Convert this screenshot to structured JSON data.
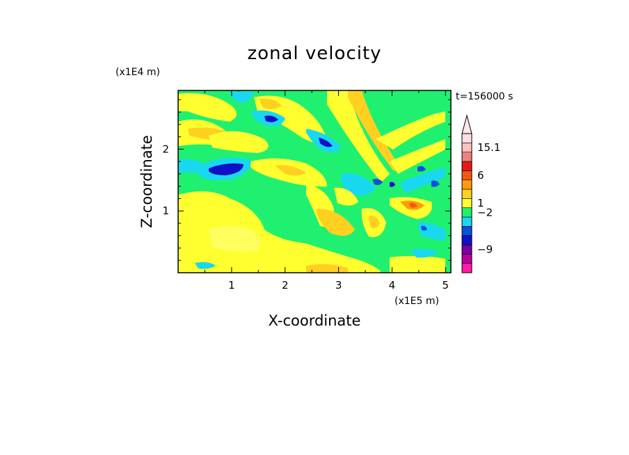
{
  "chart_data": {
    "type": "heatmap",
    "title": "zonal velocity",
    "xlabel": "X-coordinate",
    "ylabel": "Z-coordinate",
    "x_unit": "(x1E5 m)",
    "y_unit": "(x1E4 m)",
    "time_label": "t=156000 s",
    "xlim": [
      0,
      5.1
    ],
    "ylim": [
      0,
      2.95
    ],
    "x_ticks": [
      "1",
      "2",
      "3",
      "4",
      "5"
    ],
    "y_ticks": [
      "1",
      "2"
    ],
    "colorbar": {
      "tick_labels": [
        "15.1",
        "6",
        "1",
        "−2",
        "−9"
      ],
      "levels": [
        {
          "color": "#ff1aa8"
        },
        {
          "color": "#b8009c"
        },
        {
          "color": "#7800a8"
        },
        {
          "color": "#1010c8"
        },
        {
          "color": "#0a50e0"
        },
        {
          "color": "#18d8f0"
        },
        {
          "color": "#20f070"
        },
        {
          "color": "#ffff30"
        },
        {
          "color": "#ffd020"
        },
        {
          "color": "#ff9a10"
        },
        {
          "color": "#f05a10"
        },
        {
          "color": "#e81818"
        },
        {
          "color": "#f08080"
        },
        {
          "color": "#ffc0c0"
        },
        {
          "color": "#ffe0e0"
        }
      ]
    }
  }
}
